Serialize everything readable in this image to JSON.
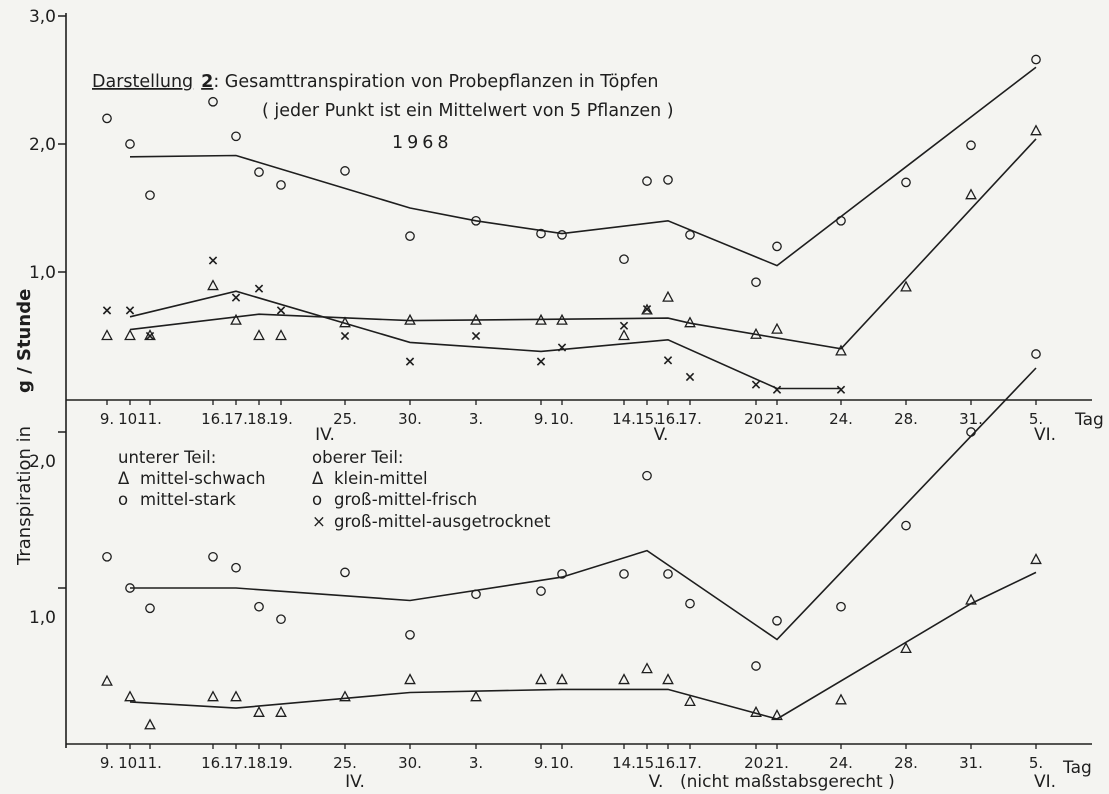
{
  "chart_data": {
    "type": "scatter",
    "title_prefix": "Darstellung",
    "title_number": "2",
    "title_rest": ": Gesamttranspiration von Probepflanzen in Töpfen",
    "subtitle": "( jeder Punkt ist ein Mittelwert von 5 Pflanzen )",
    "year": "1968",
    "ylabel_left": "Transpiration in",
    "ylabel_right": "g / Stunde",
    "x_unit": "Tag",
    "x_scale_note": "(nicht maßstabsgerecht )",
    "x_ticks": [
      "9.",
      "10.",
      "11.",
      "16.",
      "17.",
      "18.",
      "19.",
      "25.",
      "30.",
      "3.",
      "9.",
      "10.",
      "14.",
      "15.",
      "16.",
      "17.",
      "20.",
      "21.",
      "24.",
      "28.",
      "31.",
      "5."
    ],
    "month_labels": [
      "IV.",
      "V.",
      "VI."
    ],
    "legend": {
      "lower_heading": "unterer Teil:",
      "upper_heading": "oberer Teil:",
      "lower_items": [
        {
          "marker": "Δ",
          "label": "mittel-schwach"
        },
        {
          "marker": "o",
          "label": "mittel-stark"
        }
      ],
      "upper_items": [
        {
          "marker": "Δ",
          "label": "klein-mittel"
        },
        {
          "marker": "o",
          "label": "groß-mittel-frisch"
        },
        {
          "marker": "×",
          "label": "groß-mittel-ausgetrocknet"
        }
      ]
    },
    "panels": [
      {
        "name": "oberer Teil",
        "ylim": [
          0,
          3.0
        ],
        "y_ticks": [
          "1,0",
          "2,0",
          "3,0"
        ],
        "series": [
          {
            "name": "groß-mittel-frisch",
            "marker": "circle",
            "points": [
              [
                0,
                2.2
              ],
              [
                1,
                2.0
              ],
              [
                2,
                1.6
              ],
              [
                3,
                2.33
              ],
              [
                4,
                2.06
              ],
              [
                5,
                1.78
              ],
              [
                6,
                1.68
              ],
              [
                7,
                1.79
              ],
              [
                8,
                1.28
              ],
              [
                9,
                1.4
              ],
              [
                10,
                1.3
              ],
              [
                11,
                1.29
              ],
              [
                12,
                1.1
              ],
              [
                13,
                1.71
              ],
              [
                14,
                1.72
              ],
              [
                15,
                1.29
              ],
              [
                16,
                0.92
              ],
              [
                17,
                1.2
              ],
              [
                18,
                1.4
              ],
              [
                19,
                1.7
              ],
              [
                20,
                1.99
              ],
              [
                21,
                2.66
              ]
            ],
            "trend": [
              [
                1,
                1.9
              ],
              [
                4,
                1.91
              ],
              [
                8,
                1.5
              ],
              [
                9,
                1.4
              ],
              [
                11,
                1.3
              ],
              [
                14,
                1.4
              ],
              [
                17,
                1.05
              ],
              [
                21,
                2.6
              ]
            ]
          },
          {
            "name": "klein-mittel",
            "marker": "triangle",
            "points": [
              [
                0,
                0.5
              ],
              [
                1,
                0.5
              ],
              [
                2,
                0.5
              ],
              [
                3,
                0.89
              ],
              [
                4,
                0.62
              ],
              [
                5,
                0.5
              ],
              [
                6,
                0.5
              ],
              [
                7,
                0.6
              ],
              [
                8,
                0.62
              ],
              [
                9,
                0.62
              ],
              [
                10,
                0.62
              ],
              [
                11,
                0.62
              ],
              [
                12,
                0.5
              ],
              [
                13,
                0.7
              ],
              [
                14,
                0.8
              ],
              [
                15,
                0.6
              ],
              [
                16,
                0.51
              ],
              [
                17,
                0.55
              ],
              [
                18,
                0.38
              ],
              [
                19,
                0.88
              ],
              [
                20,
                1.6
              ],
              [
                21,
                2.1
              ]
            ],
            "trend": [
              [
                1,
                0.55
              ],
              [
                5,
                0.67
              ],
              [
                8,
                0.62
              ],
              [
                14,
                0.64
              ],
              [
                15,
                0.6
              ],
              [
                18,
                0.4
              ],
              [
                21,
                2.04
              ]
            ]
          },
          {
            "name": "groß-mittel-ausgetrocknet",
            "marker": "cross",
            "points": [
              [
                0,
                0.7
              ],
              [
                1,
                0.7
              ],
              [
                2,
                0.5
              ],
              [
                3,
                1.09
              ],
              [
                4,
                0.8
              ],
              [
                5,
                0.87
              ],
              [
                6,
                0.7
              ],
              [
                7,
                0.5
              ],
              [
                8,
                0.3
              ],
              [
                9,
                0.5
              ],
              [
                10,
                0.3
              ],
              [
                11,
                0.41
              ],
              [
                12,
                0.58
              ],
              [
                13,
                0.71
              ],
              [
                14,
                0.31
              ],
              [
                15,
                0.18
              ],
              [
                16,
                0.12
              ],
              [
                17,
                0.08
              ],
              [
                18,
                0.08
              ]
            ],
            "trend": [
              [
                1,
                0.65
              ],
              [
                4,
                0.85
              ],
              [
                8,
                0.45
              ],
              [
                10,
                0.38
              ],
              [
                14,
                0.47
              ],
              [
                17,
                0.09
              ],
              [
                18,
                0.09
              ]
            ]
          }
        ]
      },
      {
        "name": "unterer Teil",
        "ylim": [
          0,
          2.6
        ],
        "y_ticks": [
          "1,0",
          "2,0"
        ],
        "series": [
          {
            "name": "mittel-stark",
            "marker": "circle",
            "points": [
              [
                0,
                1.2
              ],
              [
                1,
                1.0
              ],
              [
                2,
                0.87
              ],
              [
                3,
                1.2
              ],
              [
                4,
                1.13
              ],
              [
                5,
                0.88
              ],
              [
                6,
                0.8
              ],
              [
                7,
                1.1
              ],
              [
                8,
                0.7
              ],
              [
                9,
                0.96
              ],
              [
                10,
                0.98
              ],
              [
                11,
                1.09
              ],
              [
                12,
                1.09
              ],
              [
                13,
                1.72
              ],
              [
                14,
                1.09
              ],
              [
                15,
                0.9
              ],
              [
                16,
                0.5
              ],
              [
                17,
                0.79
              ],
              [
                18,
                0.88
              ],
              [
                19,
                1.4
              ],
              [
                20,
                2.0
              ],
              [
                21,
                2.5
              ]
            ],
            "trend": [
              [
                1,
                1.0
              ],
              [
                4,
                1.0
              ],
              [
                8,
                0.92
              ],
              [
                11,
                1.07
              ],
              [
                13,
                1.24
              ],
              [
                17,
                0.67
              ],
              [
                21,
                2.41
              ]
            ]
          },
          {
            "name": "mittel-schwach",
            "marker": "triangle",
            "points": [
              [
                0,
                0.4
              ],
              [
                1,
                0.3
              ],
              [
                2,
                0.12
              ],
              [
                3,
                0.3
              ],
              [
                4,
                0.3
              ],
              [
                5,
                0.2
              ],
              [
                6,
                0.2
              ],
              [
                7,
                0.3
              ],
              [
                8,
                0.41
              ],
              [
                9,
                0.3
              ],
              [
                10,
                0.41
              ],
              [
                11,
                0.41
              ],
              [
                12,
                0.41
              ],
              [
                13,
                0.48
              ],
              [
                14,
                0.41
              ],
              [
                15,
                0.27
              ],
              [
                16,
                0.2
              ],
              [
                17,
                0.18
              ],
              [
                18,
                0.28
              ],
              [
                19,
                0.61
              ],
              [
                20,
                0.92
              ],
              [
                21,
                1.18
              ]
            ],
            "trend": [
              [
                1,
                0.27
              ],
              [
                4,
                0.23
              ],
              [
                8,
                0.33
              ],
              [
                11,
                0.35
              ],
              [
                14,
                0.35
              ],
              [
                17,
                0.16
              ],
              [
                20,
                0.9
              ],
              [
                21,
                1.1
              ]
            ]
          }
        ]
      }
    ]
  }
}
